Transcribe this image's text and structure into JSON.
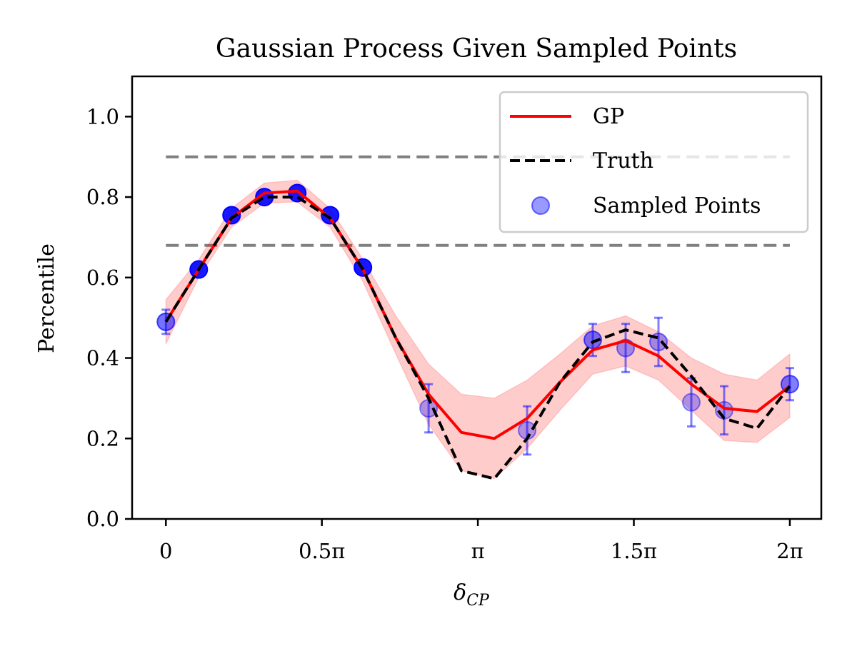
{
  "chart_data": {
    "type": "line",
    "title": "Gaussian Process Given Sampled Points",
    "xlabel": "δ",
    "xlabel_sub": "CP",
    "ylabel": "Percentile",
    "xlim": [
      -0.34,
      6.6
    ],
    "ylim": [
      0.0,
      1.1
    ],
    "x_ticks": [
      {
        "value": 0,
        "label": "0"
      },
      {
        "value": 1.5708,
        "label": "0.5π"
      },
      {
        "value": 3.1416,
        "label": "π"
      },
      {
        "value": 4.7124,
        "label": "1.5π"
      },
      {
        "value": 6.2832,
        "label": "2π"
      }
    ],
    "y_ticks": [
      {
        "value": 0.0,
        "label": "0.0"
      },
      {
        "value": 0.2,
        "label": "0.2"
      },
      {
        "value": 0.4,
        "label": "0.4"
      },
      {
        "value": 0.6,
        "label": "0.6"
      },
      {
        "value": 0.8,
        "label": "0.8"
      },
      {
        "value": 1.0,
        "label": "1.0"
      }
    ],
    "reference_lines": [
      {
        "y": 0.9,
        "color": "#808080",
        "style": "dashed"
      },
      {
        "y": 0.68,
        "color": "#808080",
        "style": "dashed"
      }
    ],
    "x": [
      0.0,
      0.3307,
      0.6614,
      0.9921,
      1.3228,
      1.6535,
      1.9842,
      2.3149,
      2.6456,
      2.9762,
      3.3069,
      3.6376,
      3.9683,
      4.299,
      4.6297,
      4.9604,
      5.2911,
      5.6218,
      5.9525,
      6.2832
    ],
    "series": [
      {
        "name": "GP",
        "color": "#ff0000",
        "style": "solid",
        "values": [
          0.49,
          0.62,
          0.748,
          0.81,
          0.815,
          0.748,
          0.62,
          0.45,
          0.31,
          0.215,
          0.2,
          0.25,
          0.34,
          0.42,
          0.443,
          0.405,
          0.335,
          0.275,
          0.267,
          0.33
        ],
        "band_lower": [
          0.435,
          0.6,
          0.725,
          0.785,
          0.788,
          0.725,
          0.59,
          0.41,
          0.235,
          0.12,
          0.1,
          0.175,
          0.27,
          0.36,
          0.38,
          0.345,
          0.27,
          0.195,
          0.19,
          0.252
        ],
        "band_upper": [
          0.545,
          0.645,
          0.772,
          0.835,
          0.842,
          0.772,
          0.645,
          0.505,
          0.385,
          0.31,
          0.3,
          0.345,
          0.41,
          0.48,
          0.505,
          0.465,
          0.4,
          0.36,
          0.345,
          0.41
        ],
        "band_color": "#ff0000",
        "band_opacity": 0.2
      },
      {
        "name": "Truth",
        "color": "#000000",
        "style": "dashed",
        "values": [
          0.49,
          0.62,
          0.748,
          0.8,
          0.8,
          0.748,
          0.62,
          0.45,
          0.3,
          0.12,
          0.1,
          0.2,
          0.34,
          0.44,
          0.47,
          0.45,
          0.355,
          0.25,
          0.225,
          0.33
        ]
      }
    ],
    "sampled_points": {
      "name": "Sampled Points",
      "color": "#0000ff",
      "points": [
        {
          "x": 0.0,
          "y": 0.49,
          "err": 0.03,
          "alpha": 0.55
        },
        {
          "x": 0.3307,
          "y": 0.62,
          "err": 0.0,
          "alpha": 0.9
        },
        {
          "x": 0.6614,
          "y": 0.755,
          "err": 0.0,
          "alpha": 0.9
        },
        {
          "x": 0.9921,
          "y": 0.8,
          "err": 0.0,
          "alpha": 0.9
        },
        {
          "x": 1.3228,
          "y": 0.81,
          "err": 0.0,
          "alpha": 0.9
        },
        {
          "x": 1.6535,
          "y": 0.755,
          "err": 0.0,
          "alpha": 0.9
        },
        {
          "x": 1.9842,
          "y": 0.625,
          "err": 0.0,
          "alpha": 0.9
        },
        {
          "x": 2.6456,
          "y": 0.275,
          "err": 0.06,
          "alpha": 0.3
        },
        {
          "x": 3.6376,
          "y": 0.22,
          "err": 0.06,
          "alpha": 0.3
        },
        {
          "x": 4.299,
          "y": 0.445,
          "err": 0.04,
          "alpha": 0.5
        },
        {
          "x": 4.6297,
          "y": 0.425,
          "err": 0.06,
          "alpha": 0.35
        },
        {
          "x": 4.9604,
          "y": 0.44,
          "err": 0.06,
          "alpha": 0.35
        },
        {
          "x": 5.2911,
          "y": 0.29,
          "err": 0.06,
          "alpha": 0.3
        },
        {
          "x": 5.6218,
          "y": 0.27,
          "err": 0.06,
          "alpha": 0.3
        },
        {
          "x": 6.2832,
          "y": 0.335,
          "err": 0.04,
          "alpha": 0.5
        }
      ]
    },
    "legend": {
      "position": "top-right",
      "entries": [
        "GP",
        "Truth",
        "Sampled Points"
      ]
    },
    "grid": false
  }
}
